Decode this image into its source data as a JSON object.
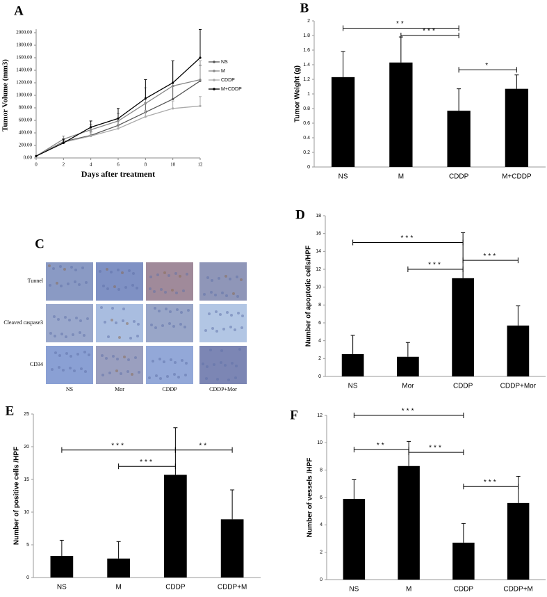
{
  "chart_data": [
    {
      "type": "line",
      "panel_label": "A",
      "x_label": "Days after treatment",
      "y_label": "Tumor Volume (mm3)",
      "x": [
        0,
        2,
        4,
        6,
        8,
        10,
        12
      ],
      "xlim": [
        0,
        12
      ],
      "xticks": [
        0,
        2,
        4,
        6,
        8,
        10,
        12
      ],
      "ylim": [
        0,
        2000
      ],
      "yticks": [
        {
          "value": 0,
          "label": "0.00"
        },
        {
          "value": 200,
          "label": "200.00"
        },
        {
          "value": 400,
          "label": "400.00"
        },
        {
          "value": 600,
          "label": "600.00"
        },
        {
          "value": 800,
          "label": "800.00"
        },
        {
          "value": 1000,
          "label": "1000.00"
        },
        {
          "value": 1200,
          "label": "1200.00"
        },
        {
          "value": 1400,
          "label": "1400.00"
        },
        {
          "value": 1600,
          "label": "1600.00"
        },
        {
          "value": 1800,
          "label": "1800.00"
        },
        {
          "value": 2000,
          "label": "2000.00"
        }
      ],
      "series": [
        {
          "name": "NS",
          "color": "#555555",
          "values": [
            30,
            260,
            360,
            520,
            730,
            940,
            1230
          ],
          "errors": [
            0,
            40,
            60,
            80,
            150,
            200,
            250
          ]
        },
        {
          "name": "M",
          "color": "#888888",
          "values": [
            30,
            300,
            450,
            590,
            870,
            1150,
            1250
          ],
          "errors": [
            0,
            50,
            80,
            120,
            250,
            400,
            300
          ]
        },
        {
          "name": "CDDP",
          "color": "#aaaaaa",
          "values": [
            30,
            250,
            350,
            470,
            660,
            790,
            830
          ],
          "errors": [
            0,
            30,
            50,
            70,
            100,
            120,
            150
          ]
        },
        {
          "name": "M+CDDP",
          "color": "#000000",
          "values": [
            30,
            240,
            490,
            630,
            950,
            1200,
            1600
          ],
          "errors": [
            0,
            60,
            100,
            160,
            300,
            350,
            450
          ]
        }
      ]
    },
    {
      "type": "bar",
      "panel_label": "B",
      "y_label": "Tumor Weight (g)",
      "categories": [
        "NS",
        "M",
        "CDDP",
        "M+CDDP"
      ],
      "values": [
        1.23,
        1.43,
        0.77,
        1.07
      ],
      "errors": [
        0.35,
        0.35,
        0.3,
        0.19
      ],
      "color": "#000000",
      "ylim": [
        0,
        2
      ],
      "yticks": [
        0,
        0.2,
        0.4,
        0.6,
        0.8,
        1,
        1.2,
        1.4,
        1.6,
        1.8,
        2
      ],
      "brackets": [
        {
          "between": [
            "NS",
            "CDDP"
          ],
          "y": 1.9,
          "label": "**"
        },
        {
          "between": [
            "M",
            "CDDP"
          ],
          "y": 1.8,
          "label": "***"
        },
        {
          "between": [
            "CDDP",
            "M+CDDP"
          ],
          "y": 1.33,
          "label": "*"
        }
      ]
    },
    {
      "type": "bar",
      "panel_label": "D",
      "y_label": "Number of apoptotic cells/HPF",
      "categories": [
        "NS",
        "Mor",
        "CDDP",
        "CDDP+Mor"
      ],
      "values": [
        2.5,
        2.2,
        11,
        5.7
      ],
      "errors": [
        2.1,
        1.6,
        5.1,
        2.2
      ],
      "color": "#000000",
      "ylim": [
        0,
        18
      ],
      "yticks": [
        0,
        2,
        4,
        6,
        8,
        10,
        12,
        14,
        16,
        18
      ],
      "brackets": [
        {
          "between": [
            "NS",
            "CDDP"
          ],
          "y": 15,
          "label": "***"
        },
        {
          "between": [
            "Mor",
            "CDDP"
          ],
          "y": 12,
          "label": "***"
        },
        {
          "between": [
            "CDDP",
            "CDDP+Mor"
          ],
          "y": 13,
          "label": "***"
        }
      ]
    },
    {
      "type": "bar",
      "panel_label": "E",
      "y_label": "Number of positive cells /HPF",
      "categories": [
        "NS",
        "M",
        "CDDP",
        "CDDP+M"
      ],
      "values": [
        3.3,
        2.9,
        15.7,
        8.9
      ],
      "errors": [
        2.4,
        2.6,
        7.2,
        4.5
      ],
      "color": "#000000",
      "ylim": [
        0,
        25
      ],
      "yticks": [
        0,
        5,
        10,
        15,
        20,
        25
      ],
      "brackets": [
        {
          "between": [
            "NS",
            "CDDP"
          ],
          "y": 19.5,
          "label": "***"
        },
        {
          "between": [
            "M",
            "CDDP"
          ],
          "y": 17,
          "label": "***"
        },
        {
          "between": [
            "CDDP",
            "CDDP+M"
          ],
          "y": 19.5,
          "label": "**"
        }
      ]
    },
    {
      "type": "bar",
      "panel_label": "F",
      "y_label": "Number of vessels /HPF",
      "categories": [
        "NS",
        "M",
        "CDDP",
        "CDDP+M"
      ],
      "values": [
        5.9,
        8.3,
        2.7,
        5.6
      ],
      "errors": [
        1.4,
        1.8,
        1.4,
        1.95
      ],
      "color": "#000000",
      "ylim": [
        0,
        12
      ],
      "yticks": [
        0,
        2,
        4,
        6,
        8,
        10,
        12
      ],
      "brackets": [
        {
          "between": [
            "NS",
            "CDDP"
          ],
          "y": 12,
          "label": "***"
        },
        {
          "between": [
            "NS",
            "M"
          ],
          "y": 9.5,
          "label": "**"
        },
        {
          "between": [
            "M",
            "CDDP"
          ],
          "y": 9.3,
          "label": "***"
        },
        {
          "between": [
            "CDDP",
            "CDDP+M"
          ],
          "y": 6.8,
          "label": "***"
        }
      ]
    }
  ],
  "image_panel": {
    "panel_label": "C",
    "rows": [
      "Tunnel",
      "Cleaved caspase3",
      "CD34"
    ],
    "columns": [
      "NS",
      "Mor",
      "CDDP",
      "CDDP+Mor"
    ]
  }
}
